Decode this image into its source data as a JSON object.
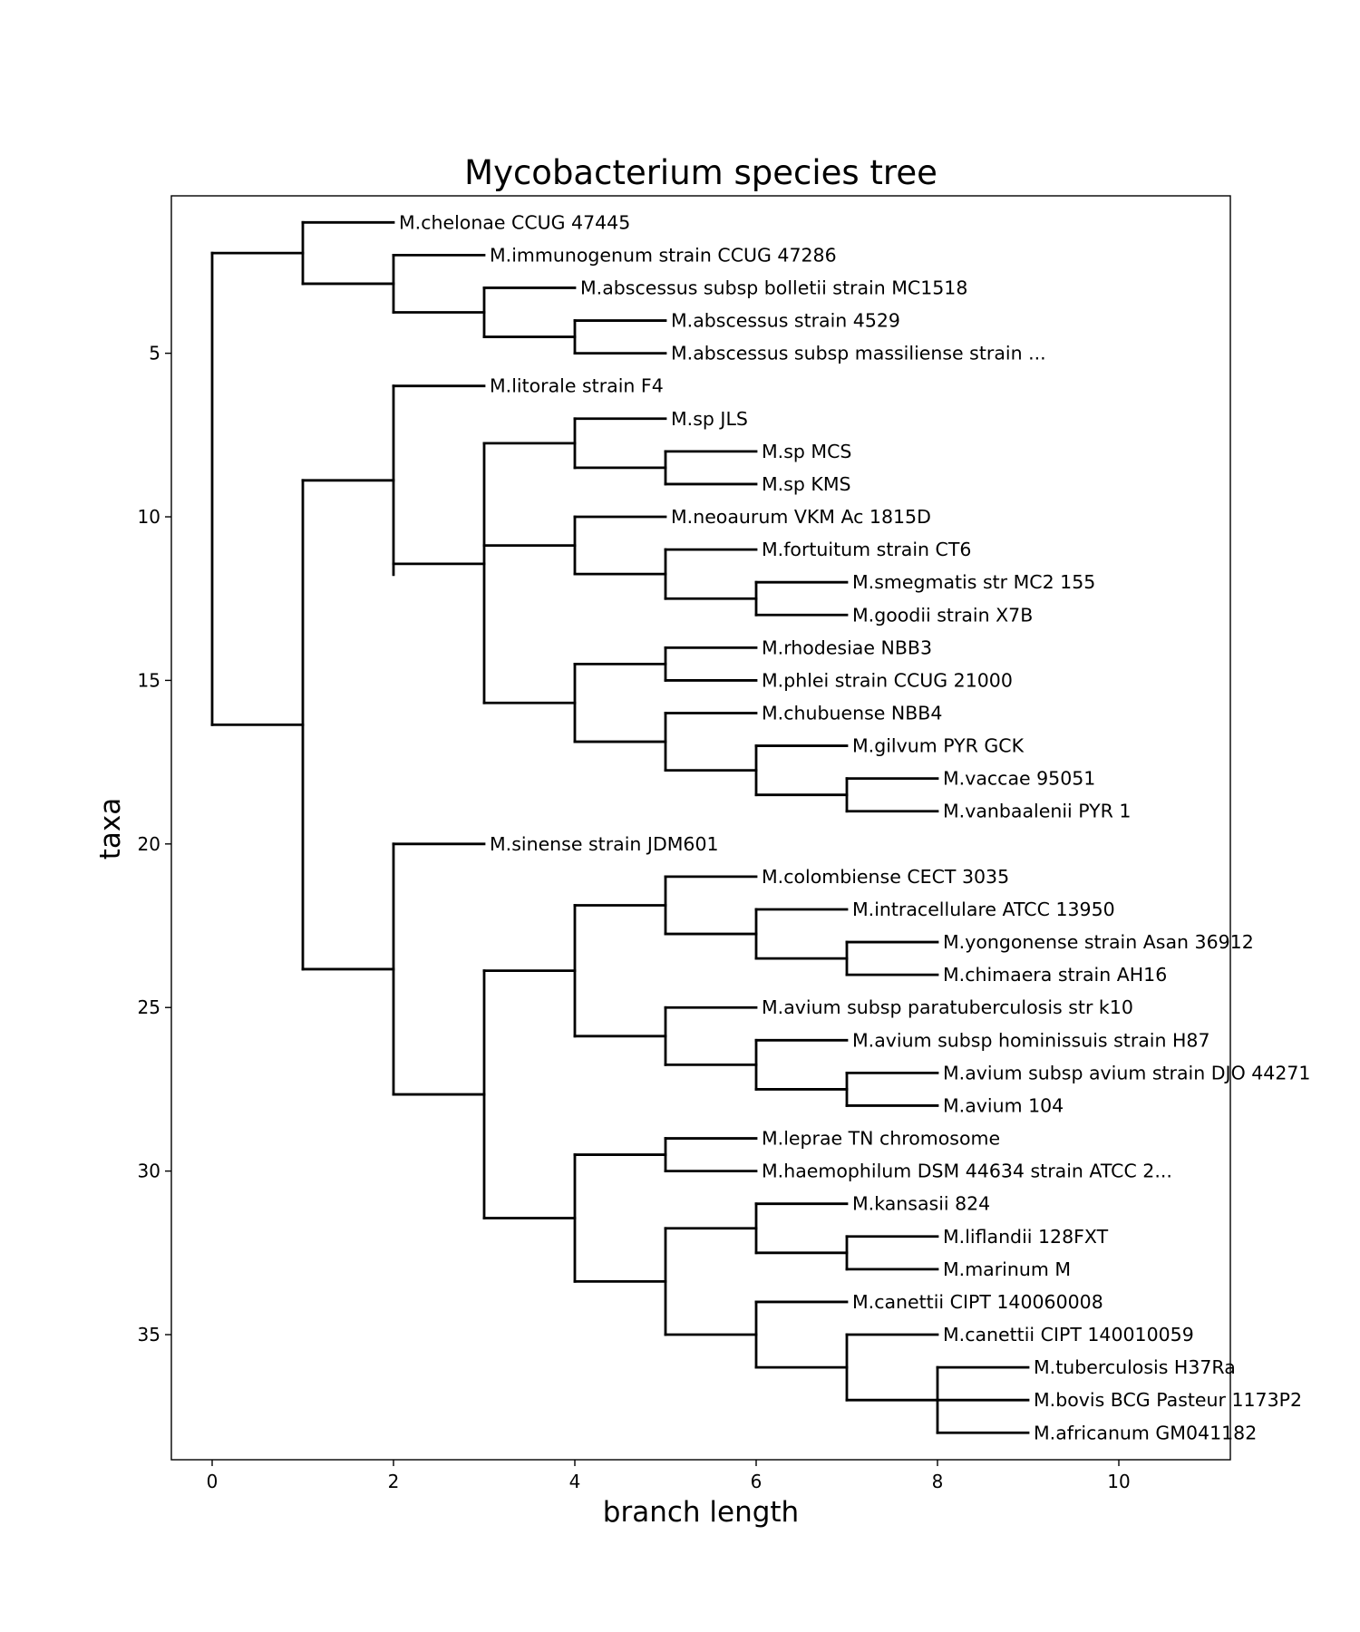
{
  "chart_data": {
    "type": "phylogenetic-tree",
    "title": "Mycobacterium species tree",
    "xlabel": "branch length",
    "ylabel": "taxa",
    "xlim": [
      -0.45,
      11.25
    ],
    "ylim": [
      38.7,
      0.2
    ],
    "x_ticks": [
      0,
      2,
      4,
      6,
      8,
      10
    ],
    "y_ticks": [
      5,
      10,
      15,
      20,
      25,
      30,
      35
    ],
    "grid": false,
    "leaves": [
      {
        "name": "M.chelonae CCUG 47445",
        "x": 2,
        "y": 1
      },
      {
        "name": "M.immunogenum strain CCUG 47286",
        "x": 3,
        "y": 2
      },
      {
        "name": "M.abscessus subsp bolletii strain MC1518",
        "x": 4,
        "y": 3
      },
      {
        "name": "M.abscessus strain 4529",
        "x": 5,
        "y": 4
      },
      {
        "name": "M.abscessus subsp massiliense strain ...",
        "x": 5,
        "y": 5
      },
      {
        "name": "M.litorale strain F4",
        "x": 3,
        "y": 6
      },
      {
        "name": "M.sp JLS",
        "x": 5,
        "y": 7
      },
      {
        "name": "M.sp MCS",
        "x": 6,
        "y": 8
      },
      {
        "name": "M.sp KMS",
        "x": 6,
        "y": 9
      },
      {
        "name": "M.neoaurum VKM Ac 1815D",
        "x": 5,
        "y": 10
      },
      {
        "name": "M.fortuitum strain CT6",
        "x": 6,
        "y": 11
      },
      {
        "name": "M.smegmatis str MC2 155",
        "x": 7,
        "y": 12
      },
      {
        "name": "M.goodii strain X7B",
        "x": 7,
        "y": 13
      },
      {
        "name": "M.rhodesiae NBB3",
        "x": 6,
        "y": 14
      },
      {
        "name": "M.phlei strain CCUG 21000",
        "x": 6,
        "y": 15
      },
      {
        "name": "M.chubuense NBB4",
        "x": 6,
        "y": 16
      },
      {
        "name": "M.gilvum PYR GCK",
        "x": 7,
        "y": 17
      },
      {
        "name": "M.vaccae 95051",
        "x": 8,
        "y": 18
      },
      {
        "name": "M.vanbaalenii PYR 1",
        "x": 8,
        "y": 19
      },
      {
        "name": "M.sinense strain JDM601",
        "x": 3,
        "y": 20
      },
      {
        "name": "M.colombiense CECT 3035",
        "x": 6,
        "y": 21
      },
      {
        "name": "M.intracellulare ATCC 13950",
        "x": 7,
        "y": 22
      },
      {
        "name": "M.yongonense strain Asan 36912",
        "x": 8,
        "y": 23
      },
      {
        "name": "M.chimaera strain AH16",
        "x": 8,
        "y": 24
      },
      {
        "name": "M.avium subsp paratuberculosis str k10",
        "x": 6,
        "y": 25
      },
      {
        "name": "M.avium subsp hominissuis strain H87",
        "x": 7,
        "y": 26
      },
      {
        "name": "M.avium subsp avium strain DJO 44271",
        "x": 8,
        "y": 27
      },
      {
        "name": "M.avium 104",
        "x": 8,
        "y": 28
      },
      {
        "name": "M.leprae TN chromosome",
        "x": 6,
        "y": 29
      },
      {
        "name": "M.haemophilum DSM 44634 strain ATCC 2...",
        "x": 6,
        "y": 30
      },
      {
        "name": "M.kansasii 824",
        "x": 7,
        "y": 31
      },
      {
        "name": "M.liflandii 128FXT",
        "x": 8,
        "y": 32
      },
      {
        "name": "M.marinum M",
        "x": 8,
        "y": 33
      },
      {
        "name": "M.canettii CIPT 140060008",
        "x": 7,
        "y": 34
      },
      {
        "name": "M.canettii CIPT 140010059",
        "x": 8,
        "y": 35
      },
      {
        "name": "M.tuberculosis H37Ra",
        "x": 9,
        "y": 36
      },
      {
        "name": "M.bovis BCG Pasteur 1173P2",
        "x": 9,
        "y": 37
      },
      {
        "name": "M.africanum GM041182",
        "x": 9,
        "y": 38
      }
    ],
    "clades": [
      {
        "x": 4,
        "y": [
          4,
          5
        ]
      },
      {
        "x": 3,
        "y": [
          3,
          4.5
        ]
      },
      {
        "x": 2,
        "y": [
          2,
          3.75
        ]
      },
      {
        "x": 1,
        "y": [
          1,
          2.875
        ]
      },
      {
        "x": 5,
        "y": [
          8,
          9
        ]
      },
      {
        "x": 4,
        "y": [
          7,
          8.5
        ]
      },
      {
        "x": 6,
        "y": [
          12,
          13
        ]
      },
      {
        "x": 5,
        "y": [
          11,
          12.5
        ]
      },
      {
        "x": 4,
        "y": [
          10,
          11.75
        ]
      },
      {
        "x": 5,
        "y": [
          14,
          15
        ]
      },
      {
        "x": 7,
        "y": [
          18,
          19
        ]
      },
      {
        "x": 6,
        "y": [
          17,
          18.5
        ]
      },
      {
        "x": 5,
        "y": [
          16,
          17.75
        ]
      },
      {
        "x": 4,
        "y": [
          14.5,
          16.875
        ]
      },
      {
        "x": 3,
        "y": [
          7.75,
          10.875,
          15.6875
        ]
      },
      {
        "x": 2,
        "y": [
          6,
          11.7708
        ]
      },
      {
        "x": 7,
        "y": [
          23,
          24
        ]
      },
      {
        "x": 6,
        "y": [
          22,
          23.5
        ]
      },
      {
        "x": 5,
        "y": [
          21,
          22.75
        ]
      },
      {
        "x": 7,
        "y": [
          27,
          28
        ]
      },
      {
        "x": 6,
        "y": [
          26,
          27.5
        ]
      },
      {
        "x": 5,
        "y": [
          25,
          26.75
        ]
      },
      {
        "x": 4,
        "y": [
          21.875,
          25.875
        ]
      },
      {
        "x": 5,
        "y": [
          29,
          30
        ]
      },
      {
        "x": 7,
        "y": [
          32,
          33
        ]
      },
      {
        "x": 6,
        "y": [
          31,
          32.5
        ]
      },
      {
        "x": 8,
        "y": [
          36,
          37,
          38
        ]
      },
      {
        "x": 7,
        "y": [
          35,
          37
        ]
      },
      {
        "x": 6,
        "y": [
          34,
          36
        ]
      },
      {
        "x": 5,
        "y": [
          31.75,
          35
        ]
      },
      {
        "x": 4,
        "y": [
          29.5,
          33.375
        ]
      },
      {
        "x": 3,
        "y": [
          23.875,
          31.4375
        ]
      },
      {
        "x": 2,
        "y": [
          20,
          27.6563
        ]
      },
      {
        "x": 1,
        "y": [
          8.8854,
          23.8281
        ]
      },
      {
        "x": 0,
        "y": [
          1.9375,
          16.3568
        ]
      }
    ]
  }
}
